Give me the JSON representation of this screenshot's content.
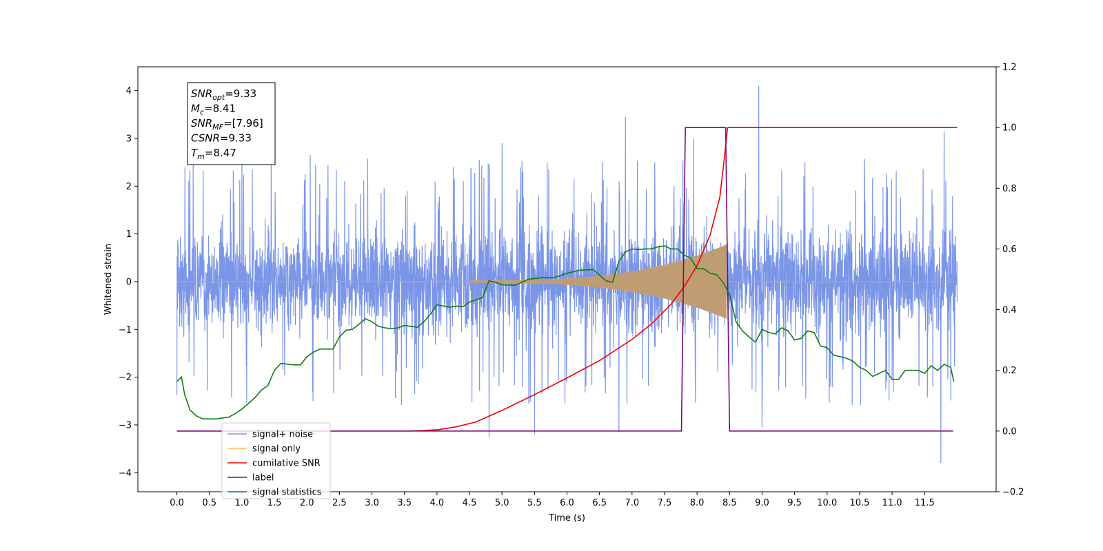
{
  "chart_data": {
    "type": "line",
    "xlabel": "Time (s)",
    "ylabel": "Whitened strain",
    "xlim": [
      -0.6,
      12.6
    ],
    "ylim": [
      -4.4,
      4.5
    ],
    "y2lim": [
      -0.2,
      1.2
    ],
    "x_ticks": [
      0.0,
      0.5,
      1.0,
      1.5,
      2.0,
      2.5,
      3.0,
      3.5,
      4.0,
      4.5,
      5.0,
      5.5,
      6.0,
      6.5,
      7.0,
      7.5,
      8.0,
      8.5,
      9.0,
      9.5,
      10.0,
      10.5,
      11.0,
      11.5
    ],
    "x_tick_labels": [
      "0.0",
      "0.5",
      "1.0",
      "1.5",
      "2.0",
      "2.5",
      "3.0",
      "3.5",
      "4.0",
      "4.5",
      "5.0",
      "5.5",
      "6.0",
      "6.5",
      "7.0",
      "7.5",
      "8.0",
      "8.5",
      "9.0",
      "9.5",
      "10.0",
      "10.5",
      "11.0",
      "11.5"
    ],
    "y_ticks": [
      -4,
      -3,
      -2,
      -1,
      0,
      1,
      2,
      3,
      4
    ],
    "y_tick_labels": [
      "−4",
      "−3",
      "−2",
      "−1",
      "0",
      "1",
      "2",
      "3",
      "4"
    ],
    "y2_ticks": [
      -0.2,
      0.0,
      0.2,
      0.4,
      0.6,
      0.8,
      1.0,
      1.2
    ],
    "y2_tick_labels": [
      "−0.2",
      "0.0",
      "0.2",
      "0.4",
      "0.6",
      "0.8",
      "1.0",
      "1.2"
    ],
    "annotation": [
      {
        "sym": "SNR",
        "sub": "opt",
        "val": "=9.33"
      },
      {
        "sym": "M",
        "sub": "c",
        "val": "=8.41"
      },
      {
        "sym": "SNR",
        "sub": "MF",
        "val": "=[7.96]"
      },
      {
        "sym": "CSNR",
        "sub": "",
        "val": "=9.33"
      },
      {
        "sym": "T",
        "sub": "m",
        "val": "=8.47"
      }
    ],
    "legend_position": "lower-left",
    "noise": {
      "name": "signal+ noise",
      "color": "#7b96e8",
      "x_range": [
        0.0,
        12.0
      ],
      "envelope": 1.3,
      "peaks": [
        {
          "x": 0.25,
          "y": 2.5
        },
        {
          "x": 1.0,
          "y": 2.55
        },
        {
          "x": 1.45,
          "y": 2.45
        },
        {
          "x": 2.05,
          "y": 2.65
        },
        {
          "x": 4.65,
          "y": 2.55
        },
        {
          "x": 5.0,
          "y": 2.9
        },
        {
          "x": 6.9,
          "y": 3.45
        },
        {
          "x": 7.95,
          "y": 3.0
        },
        {
          "x": 8.95,
          "y": 4.1
        },
        {
          "x": 11.8,
          "y": 3.15
        },
        {
          "x": 4.8,
          "y": -3.25
        },
        {
          "x": 5.5,
          "y": -3.2
        },
        {
          "x": 6.8,
          "y": -3.15
        },
        {
          "x": 11.75,
          "y": -3.8
        },
        {
          "x": 9.0,
          "y": -3.05
        }
      ]
    },
    "signal": {
      "name": "signal only",
      "color": "#ffbf55",
      "x_range": [
        4.5,
        8.45
      ],
      "amplitude_end": 0.75
    },
    "series": [
      {
        "name": "cumilative SNR",
        "color": "#ee0000",
        "axis": "right",
        "x": [
          0.0,
          3.6,
          4.0,
          4.3,
          4.6,
          5.0,
          5.5,
          6.0,
          6.5,
          7.0,
          7.3,
          7.6,
          7.8,
          8.0,
          8.2,
          8.35,
          8.42,
          8.47,
          12.0
        ],
        "y": [
          0.0,
          0.0,
          0.004,
          0.014,
          0.03,
          0.068,
          0.12,
          0.175,
          0.232,
          0.302,
          0.353,
          0.418,
          0.475,
          0.545,
          0.645,
          0.77,
          0.9,
          1.0,
          1.0
        ]
      },
      {
        "name": "label",
        "color": "#7a0a7a",
        "axis": "right",
        "x": [
          0.0,
          7.76,
          7.82,
          8.44,
          8.5,
          11.94
        ],
        "y": [
          0.0,
          0.0,
          1.0,
          1.0,
          0.0,
          0.0
        ]
      },
      {
        "name": "signal statistics",
        "color": "#127a12",
        "axis": "right",
        "x": [
          0.0,
          0.07,
          0.12,
          0.2,
          0.3,
          0.4,
          0.5,
          0.6,
          0.8,
          0.9,
          1.0,
          1.2,
          1.3,
          1.4,
          1.5,
          1.6,
          1.8,
          1.9,
          2.0,
          2.1,
          2.2,
          2.4,
          2.5,
          2.6,
          2.7,
          2.8,
          2.9,
          3.0,
          3.1,
          3.2,
          3.3,
          3.4,
          3.5,
          3.6,
          3.7,
          3.8,
          3.9,
          4.0,
          4.1,
          4.2,
          4.3,
          4.4,
          4.5,
          4.7,
          4.8,
          4.9,
          5.0,
          5.2,
          5.4,
          5.6,
          5.8,
          6.0,
          6.2,
          6.4,
          6.6,
          6.7,
          6.8,
          6.9,
          7.0,
          7.1,
          7.2,
          7.3,
          7.4,
          7.5,
          7.6,
          7.7,
          7.8,
          7.9,
          8.0,
          8.1,
          8.2,
          8.3,
          8.4,
          8.5,
          8.6,
          8.7,
          8.8,
          8.9,
          9.0,
          9.1,
          9.2,
          9.3,
          9.4,
          9.5,
          9.6,
          9.7,
          9.8,
          9.9,
          10.0,
          10.1,
          10.2,
          10.3,
          10.4,
          10.5,
          10.6,
          10.7,
          10.8,
          10.9,
          11.0,
          11.1,
          11.2,
          11.3,
          11.4,
          11.5,
          11.6,
          11.7,
          11.8,
          11.9,
          11.95
        ],
        "y": [
          0.163,
          0.178,
          0.12,
          0.07,
          0.05,
          0.04,
          0.04,
          0.04,
          0.046,
          0.058,
          0.072,
          0.11,
          0.135,
          0.15,
          0.2,
          0.223,
          0.218,
          0.218,
          0.245,
          0.26,
          0.27,
          0.27,
          0.31,
          0.332,
          0.335,
          0.352,
          0.37,
          0.36,
          0.345,
          0.34,
          0.337,
          0.34,
          0.348,
          0.345,
          0.342,
          0.36,
          0.385,
          0.416,
          0.412,
          0.408,
          0.412,
          0.41,
          0.425,
          0.44,
          0.495,
          0.49,
          0.482,
          0.48,
          0.5,
          0.505,
          0.505,
          0.52,
          0.53,
          0.532,
          0.495,
          0.49,
          0.56,
          0.59,
          0.6,
          0.598,
          0.6,
          0.6,
          0.607,
          0.61,
          0.6,
          0.6,
          0.58,
          0.57,
          0.535,
          0.535,
          0.52,
          0.515,
          0.49,
          0.45,
          0.36,
          0.33,
          0.31,
          0.293,
          0.335,
          0.325,
          0.32,
          0.34,
          0.33,
          0.3,
          0.305,
          0.33,
          0.325,
          0.28,
          0.275,
          0.25,
          0.245,
          0.24,
          0.23,
          0.21,
          0.2,
          0.18,
          0.19,
          0.2,
          0.17,
          0.17,
          0.2,
          0.2,
          0.2,
          0.19,
          0.215,
          0.2,
          0.22,
          0.21,
          0.163
        ]
      }
    ],
    "legend": [
      {
        "label": "signal+ noise",
        "color": "#7b96e8"
      },
      {
        "label": "signal only",
        "color": "#ffbf55"
      },
      {
        "label": "cumilative SNR",
        "color": "#ee0000"
      },
      {
        "label": "label",
        "color": "#7a0a7a"
      },
      {
        "label": "signal statistics",
        "color": "#127a12"
      }
    ]
  }
}
